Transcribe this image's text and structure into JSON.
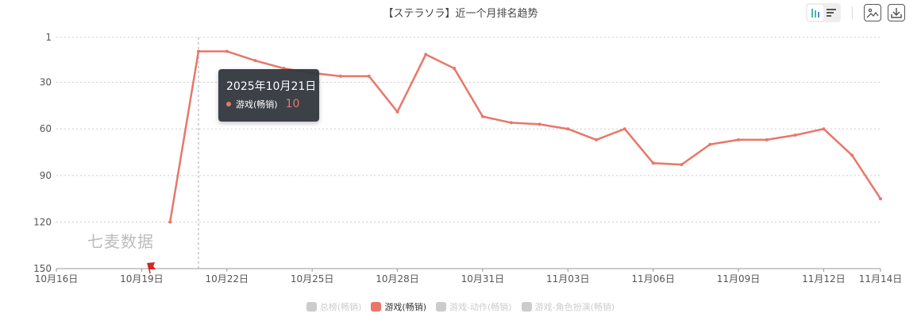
{
  "chart_data": {
    "type": "line",
    "title": "【ステラソラ】近一个月排名趋势",
    "xlabel": "",
    "ylabel": "",
    "y_inverted": true,
    "ylim": [
      1,
      150
    ],
    "y_ticks": [
      "1",
      "30",
      "60",
      "90",
      "120",
      "150"
    ],
    "x_ticks": [
      "10月16日",
      "10月19日",
      "10月22日",
      "10月25日",
      "10月28日",
      "10月31日",
      "11月03日",
      "11月06日",
      "11月09日",
      "11月12日",
      "11月14日"
    ],
    "x_tick_days": [
      0,
      3,
      6,
      9,
      12,
      15,
      18,
      21,
      24,
      27,
      29
    ],
    "series": [
      {
        "name": "游戏(畅销)",
        "color": "#e8776a",
        "x_days": [
          4,
          5,
          6,
          7,
          8,
          9,
          10,
          11,
          12,
          13,
          14,
          15,
          16,
          17,
          18,
          19,
          20,
          21,
          22,
          23,
          24,
          25,
          26,
          27,
          28,
          29
        ],
        "values": [
          120,
          10,
          10,
          16,
          21,
          24,
          26,
          26,
          49,
          12,
          21,
          52,
          56,
          57,
          60,
          67,
          60,
          82,
          83,
          70,
          67,
          67,
          64,
          60,
          77,
          105
        ]
      }
    ],
    "legend": [
      {
        "label": "总榜(畅销)",
        "active": false
      },
      {
        "label": "游戏(畅销)",
        "active": true
      },
      {
        "label": "游戏-动作(畅销)",
        "active": false
      },
      {
        "label": "游戏-角色扮演(畅销)",
        "active": false
      }
    ],
    "legend_position": "bottom",
    "grid": true
  },
  "tooltip": {
    "date": "2025年10月21日",
    "series": "游戏(畅销)",
    "value": "10"
  },
  "watermark": "七麦数据",
  "colors": {
    "accent": "#e8776a",
    "inactive": "#cccccc"
  }
}
